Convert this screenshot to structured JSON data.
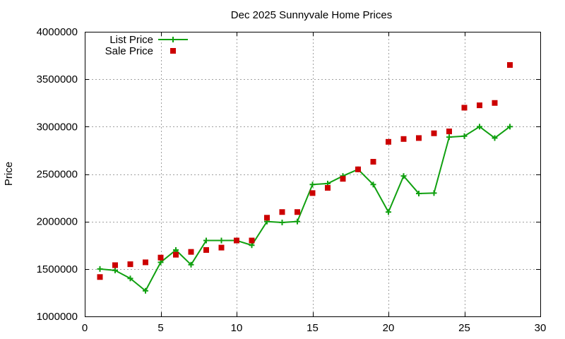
{
  "chart_data": {
    "type": "line",
    "title": "Dec 2025 Sunnyvale Home Prices",
    "xlabel": "",
    "ylabel": "Price",
    "xlim": [
      0,
      30
    ],
    "ylim": [
      1000000,
      4000000
    ],
    "x_ticks": [
      0,
      5,
      10,
      15,
      20,
      25,
      30
    ],
    "y_ticks": [
      1000000,
      1500000,
      2000000,
      2500000,
      3000000,
      3500000,
      4000000
    ],
    "x_tick_labels": [
      "0",
      "5",
      "10",
      "15",
      "20",
      "25",
      "30"
    ],
    "y_tick_labels": [
      "1000000",
      "1500000",
      "2000000",
      "2500000",
      "3000000",
      "3500000",
      "4000000"
    ],
    "grid": true,
    "legend_position": "top-left",
    "series": [
      {
        "name": "List Price",
        "style": "line-plus",
        "color": "#10a010",
        "x": [
          1,
          2,
          3,
          4,
          5,
          6,
          7,
          8,
          9,
          10,
          11,
          12,
          13,
          14,
          15,
          16,
          17,
          18,
          19,
          20,
          21,
          22,
          23,
          24,
          25,
          26,
          27,
          28
        ],
        "y": [
          1500000,
          1485000,
          1400000,
          1270000,
          1570000,
          1700000,
          1545000,
          1800000,
          1800000,
          1800000,
          1750000,
          2000000,
          1990000,
          2000000,
          2390000,
          2400000,
          2480000,
          2550000,
          2390000,
          2100000,
          2480000,
          2295000,
          2300000,
          2890000,
          2900000,
          3000000,
          2880000,
          3000000
        ]
      },
      {
        "name": "Sale Price",
        "style": "square-markers",
        "color": "#cc0000",
        "x": [
          1,
          2,
          3,
          4,
          5,
          6,
          7,
          8,
          9,
          10,
          11,
          12,
          13,
          14,
          15,
          16,
          17,
          18,
          19,
          20,
          21,
          22,
          23,
          24,
          25,
          26,
          27,
          28
        ],
        "y": [
          1415000,
          1540000,
          1550000,
          1570000,
          1620000,
          1650000,
          1680000,
          1700000,
          1725000,
          1800000,
          1800000,
          2040000,
          2100000,
          2100000,
          2300000,
          2355000,
          2450000,
          2550000,
          2630000,
          2840000,
          2870000,
          2880000,
          2930000,
          2950000,
          3200000,
          3225000,
          3250000,
          3650000
        ]
      }
    ]
  }
}
